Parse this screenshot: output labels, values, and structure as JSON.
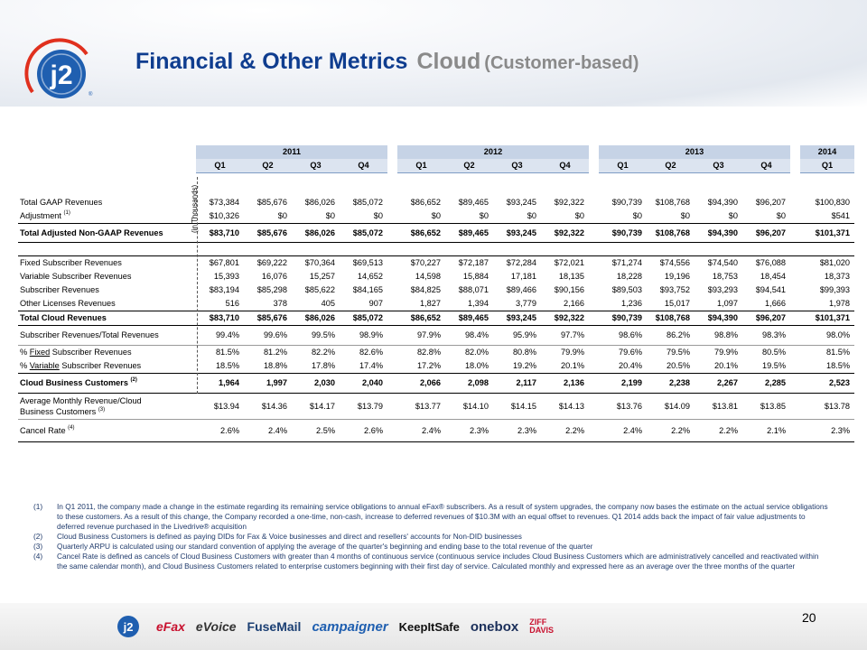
{
  "header": {
    "logo_text": "j2",
    "title_main": "Financial & Other Metrics",
    "title_cloud": "Cloud",
    "title_sub": "(Customer-based)"
  },
  "table": {
    "years": [
      "2011",
      "2012",
      "2013",
      "2014"
    ],
    "quarters": [
      "Q1",
      "Q2",
      "Q3",
      "Q4",
      "Q1",
      "Q2",
      "Q3",
      "Q4",
      "Q1",
      "Q2",
      "Q3",
      "Q4",
      "Q1"
    ],
    "side_label": "(in Thousands)",
    "rows": {
      "total_gaap": {
        "label": "Total GAAP Revenues",
        "values": [
          "$73,384",
          "$85,676",
          "$86,026",
          "$85,072",
          "$86,652",
          "$89,465",
          "$93,245",
          "$92,322",
          "$90,739",
          "$108,768",
          "$94,390",
          "$96,207",
          "$100,830"
        ]
      },
      "adjustment": {
        "label": "Adjustment",
        "sup": "(1)",
        "values": [
          "$10,326",
          "$0",
          "$0",
          "$0",
          "$0",
          "$0",
          "$0",
          "$0",
          "$0",
          "$0",
          "$0",
          "$0",
          "$541"
        ]
      },
      "total_adjusted": {
        "label": "Total Adjusted Non-GAAP Revenues",
        "values": [
          "$83,710",
          "$85,676",
          "$86,026",
          "$85,072",
          "$86,652",
          "$89,465",
          "$93,245",
          "$92,322",
          "$90,739",
          "$108,768",
          "$94,390",
          "$96,207",
          "$101,371"
        ]
      },
      "fixed_sub": {
        "label": "Fixed Subscriber Revenues",
        "values": [
          "$67,801",
          "$69,222",
          "$70,364",
          "$69,513",
          "$70,227",
          "$72,187",
          "$72,284",
          "$72,021",
          "$71,274",
          "$74,556",
          "$74,540",
          "$76,088",
          "$81,020"
        ]
      },
      "variable_sub": {
        "label": "Variable Subscriber Revenues",
        "values": [
          "15,393",
          "16,076",
          "15,257",
          "14,652",
          "14,598",
          "15,884",
          "17,181",
          "18,135",
          "18,228",
          "19,196",
          "18,753",
          "18,454",
          "18,373"
        ]
      },
      "subscriber": {
        "label": "Subscriber Revenues",
        "values": [
          "$83,194",
          "$85,298",
          "$85,622",
          "$84,165",
          "$84,825",
          "$88,071",
          "$89,466",
          "$90,156",
          "$89,503",
          "$93,752",
          "$93,293",
          "$94,541",
          "$99,393"
        ]
      },
      "other_lic": {
        "label": "Other Licenses Revenues",
        "values": [
          "516",
          "378",
          "405",
          "907",
          "1,827",
          "1,394",
          "3,779",
          "2,166",
          "1,236",
          "15,017",
          "1,097",
          "1,666",
          "1,978"
        ]
      },
      "total_cloud": {
        "label": "Total Cloud Revenues",
        "values": [
          "$83,710",
          "$85,676",
          "$86,026",
          "$85,072",
          "$86,652",
          "$89,465",
          "$93,245",
          "$92,322",
          "$90,739",
          "$108,768",
          "$94,390",
          "$96,207",
          "$101,371"
        ]
      },
      "sub_over_total": {
        "label": "Subscriber Revenues/Total Revenues",
        "values": [
          "99.4%",
          "99.6%",
          "99.5%",
          "98.9%",
          "97.9%",
          "98.4%",
          "95.9%",
          "97.7%",
          "98.6%",
          "86.2%",
          "98.8%",
          "98.3%",
          "98.0%"
        ]
      },
      "pct_fixed": {
        "label_pre": "% ",
        "label_u": "Fixed",
        "label_post": " Subscriber Revenues",
        "values": [
          "81.5%",
          "81.2%",
          "82.2%",
          "82.6%",
          "82.8%",
          "82.0%",
          "80.8%",
          "79.9%",
          "79.6%",
          "79.5%",
          "79.9%",
          "80.5%",
          "81.5%"
        ]
      },
      "pct_variable": {
        "label_pre": "% ",
        "label_u": "Variable",
        "label_post": " Subscriber Revenues",
        "values": [
          "18.5%",
          "18.8%",
          "17.8%",
          "17.4%",
          "17.2%",
          "18.0%",
          "19.2%",
          "20.1%",
          "20.4%",
          "20.5%",
          "20.1%",
          "19.5%",
          "18.5%"
        ]
      },
      "customers": {
        "label": "Cloud Business Customers",
        "sup": "(2)",
        "values": [
          "1,964",
          "1,997",
          "2,030",
          "2,040",
          "2,066",
          "2,098",
          "2,117",
          "2,136",
          "2,199",
          "2,238",
          "2,267",
          "2,285",
          "2,523"
        ]
      },
      "arpu": {
        "label_line1": "Average Monthly Revenue/Cloud",
        "label_line2": "Business Customers",
        "sup": "(3)",
        "values": [
          "$13.94",
          "$14.36",
          "$14.17",
          "$13.79",
          "$13.77",
          "$14.10",
          "$14.15",
          "$14.13",
          "$13.76",
          "$14.09",
          "$13.81",
          "$13.85",
          "$13.78"
        ]
      },
      "cancel": {
        "label": "Cancel Rate",
        "sup": "(4)",
        "values": [
          "2.6%",
          "2.4%",
          "2.5%",
          "2.6%",
          "2.4%",
          "2.3%",
          "2.3%",
          "2.2%",
          "2.4%",
          "2.2%",
          "2.2%",
          "2.1%",
          "2.3%"
        ]
      }
    }
  },
  "footnotes": [
    {
      "num": "(1)",
      "text": "In Q1 2011, the company made a change in the estimate regarding its remaining service obligations to annual eFax® subscribers.  As a result of system upgrades, the company now bases the estimate on the actual service obligations to these customers.  As a result of this change, the Company recorded a one-time, non-cash, increase to deferred revenues of $10.3M with an equal offset to revenues.  Q1 2014 adds back the impact of fair value adjustments to deferred revenue purchased in the Livedrive® acquisition"
    },
    {
      "num": "(2)",
      "text": "Cloud Business Customers is defined as paying DIDs for Fax & Voice businesses and direct and resellers' accounts for Non-DID businesses"
    },
    {
      "num": "(3)",
      "text": "Quarterly ARPU is calculated using our standard convention of applying the average of the quarter's beginning and ending base to the total revenue of the quarter"
    },
    {
      "num": "(4)",
      "text": "Cancel Rate is defined as cancels of Cloud Business Customers with greater than 4 months of continuous service (continuous service includes Cloud Business Customers which are administratively cancelled and reactivated within the same calendar month), and Cloud Business Customers related to enterprise  customers beginning with their first day of service. Calculated monthly and expressed here as an average over the three months of the quarter"
    }
  ],
  "footer": {
    "brands": [
      "eFax",
      "eVoice",
      "FuseMail",
      "campaigner",
      "KeepItSafe",
      "onebox",
      "ZIFF DAVIS"
    ],
    "page_number": "20"
  },
  "colors": {
    "title_blue": "#0f3d8f",
    "title_gray": "#8a8a8a",
    "logo_blue": "#1f5fb0",
    "logo_ring": "#e0301e",
    "year_band": "#c6d3e6",
    "quarter_band": "#dce4f0"
  }
}
